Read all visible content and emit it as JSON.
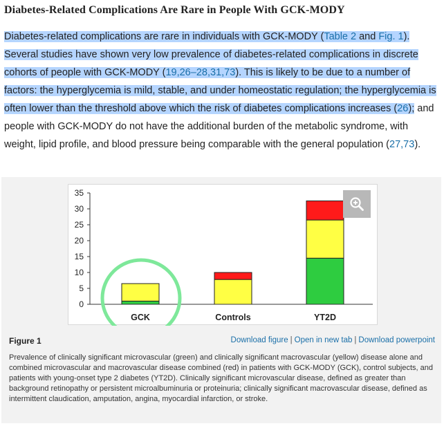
{
  "heading": "Diabetes-Related Complications Are Rare in People With GCK-MODY",
  "paragraph": {
    "p1": "Diabetes-related complications are rare in individuals with GCK-MODY (",
    "ref_table2": "Table 2",
    "p2": " and ",
    "ref_fig1": "Fig. 1",
    "p3": "). Several studies have shown very low prevalence of diabetes-related complications in discrete cohorts of people with GCK-MODY (",
    "ref_a": "19",
    "comma1": ",",
    "ref_b": "26",
    "dash": "–",
    "ref_c": "28",
    "comma2": ",",
    "ref_d": "31",
    "comma3": ",",
    "ref_e": "73",
    "p4": "). This is likely to be due to a number of factors: the hyperglycemia is mild, stable, and under homeostatic regulation; the hyperglycemia is often lower than the threshold above which the risk of diabetes complications increases (",
    "ref_f": "26",
    "p5": ");",
    "p6": " and people with GCK-MODY do not have the additional burden of the metabolic syndrome, with weight, lipid profile, and blood pressure being comparable with the general population (",
    "ref_g": "27",
    "comma4": ",",
    "ref_h": "73",
    "p7": ")."
  },
  "figure": {
    "label": "Figure 1",
    "links": [
      "Download figure",
      "Open in new tab",
      "Download powerpoint"
    ],
    "separator": "|",
    "caption": "Prevalence of clinically significant microvascular (green) and clinically significant macrovascular (yellow) disease alone and combined microvascular and macrovascular disease combined (red) in patients with GCK-MODY (GCK), control subjects, and patients with young-onset type 2 diabetes (YT2D). Clinically significant microvascular disease, defined as greater than background retinopathy or persistent microalbuminuria or proteinuria; clinically significant macrovascular disease, defined as intermittent claudication, amputation, angina, myocardial infarction, or stroke.",
    "zoom_icon": "zoom-in-icon"
  },
  "chart_data": {
    "type": "bar",
    "stacked": true,
    "categories": [
      "GCK",
      "Controls",
      "YT2D"
    ],
    "series": [
      {
        "color": "#2ecc40",
        "values": [
          1,
          0,
          14.5
        ]
      },
      {
        "color": "#ffff44",
        "values": [
          5.5,
          7.8,
          12
        ]
      },
      {
        "color": "#ff1a1a",
        "values": [
          0,
          2.2,
          6
        ]
      }
    ],
    "ylim": [
      0,
      35
    ],
    "yticks": [
      0,
      5,
      10,
      15,
      20,
      25,
      30,
      35
    ],
    "title": "",
    "xlabel": "",
    "ylabel": "",
    "grid": false,
    "highlight_category": "GCK",
    "highlight_color": "#7ee89a"
  }
}
